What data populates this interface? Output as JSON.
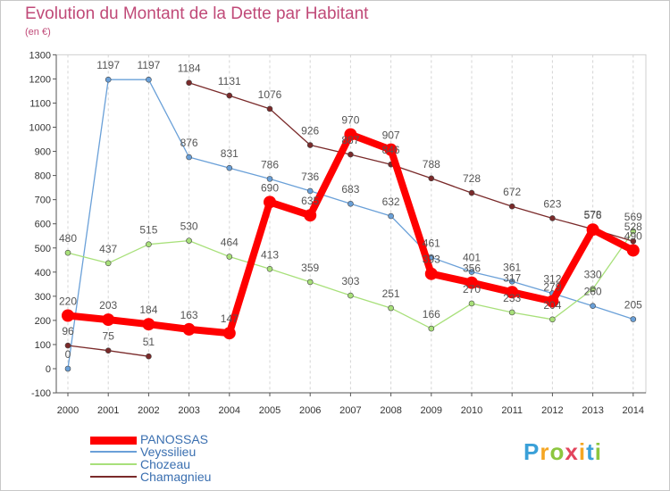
{
  "title": "Evolution du Montant de la Dette par Habitant",
  "subtitle": "(en €)",
  "chart_data": {
    "type": "line",
    "title": "Evolution du Montant de la Dette par Habitant",
    "ylabel": "(en €)",
    "xlabel": "",
    "x": [
      2000,
      2001,
      2002,
      2003,
      2004,
      2005,
      2006,
      2007,
      2008,
      2009,
      2010,
      2011,
      2012,
      2013,
      2014
    ],
    "ylim": [
      -100,
      1300
    ],
    "yticks": [
      -100,
      0,
      100,
      200,
      300,
      400,
      500,
      600,
      700,
      800,
      900,
      1000,
      1100,
      1200,
      1300
    ],
    "grid": "vertical dashed",
    "legend_position": "bottom-left",
    "series": [
      {
        "name": "PANOSSAS",
        "color": "#ff0000",
        "values": [
          220,
          203,
          184,
          163,
          147,
          690,
          635,
          970,
          907,
          393,
          356,
          317,
          279,
          576,
          490
        ],
        "labels": [
          "220",
          "203",
          "184",
          "163",
          "147",
          "690",
          "635",
          "970",
          "907",
          "393",
          "356",
          "317",
          "279",
          "576",
          "490"
        ]
      },
      {
        "name": "Veyssilieu",
        "color": "#6aa0d8",
        "values": [
          0,
          1197,
          1197,
          876,
          831,
          786,
          736,
          683,
          632,
          461,
          401,
          361,
          312,
          260,
          205
        ],
        "labels": [
          "0",
          "1197",
          "1197",
          "876",
          "831",
          "786",
          "736",
          "683",
          "632",
          "461",
          "401",
          "361",
          "312",
          "260",
          "205"
        ]
      },
      {
        "name": "Chozeau",
        "color": "#a8e07a",
        "values": [
          480,
          437,
          515,
          530,
          464,
          413,
          359,
          303,
          251,
          166,
          270,
          233,
          204,
          330,
          569
        ],
        "labels": [
          "480",
          "437",
          "515",
          "530",
          "464",
          "413",
          "359",
          "303",
          "251",
          "166",
          "270",
          "233",
          "204",
          "330",
          "569"
        ]
      },
      {
        "name": "Chamagnieu",
        "color": "#7a2a2a",
        "values": [
          96,
          75,
          51,
          1184,
          1131,
          1076,
          926,
          887,
          846,
          788,
          728,
          672,
          623,
          578,
          528
        ],
        "labels": [
          "96",
          "75",
          "51",
          "1184",
          "1131",
          "1076",
          "926",
          "887",
          "846",
          "788",
          "728",
          "672",
          "623",
          "578",
          "528"
        ],
        "gap_after": "2002"
      }
    ]
  },
  "logo": {
    "letters": [
      "P",
      "r",
      "o",
      "x",
      "i",
      "t",
      "i"
    ],
    "colors": [
      "#3aa0d8",
      "#f5a623",
      "#8cc63f",
      "#e2445c",
      "#f5a623",
      "#3aa0d8",
      "#8cc63f"
    ]
  }
}
